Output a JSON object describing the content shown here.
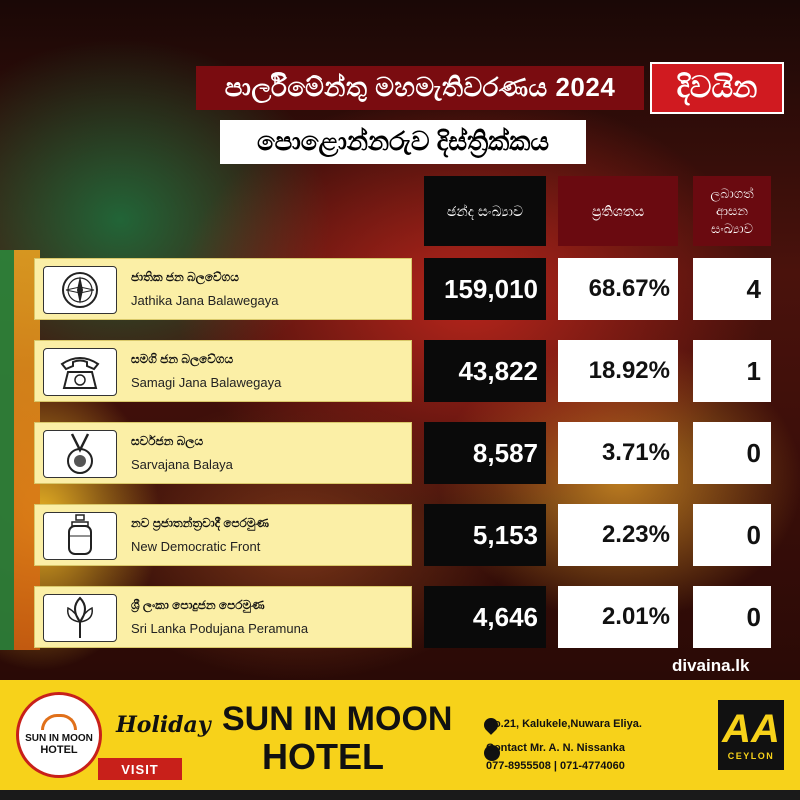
{
  "header": {
    "title": "පාර්ලිමේන්තු මහමැතිවරණය 2024",
    "brand": "දිවයින",
    "district": "පොළොන්නරුව දිස්ත්‍රික්කය"
  },
  "columns": {
    "votes": "ඡන්ද සංඛ්‍යාව",
    "percent": "ප්‍රතිශතය",
    "seats": "ලබාගත් ආසන සංඛ්‍යාව"
  },
  "results": [
    {
      "name_si": "ජාතික ජන බලවේගය",
      "name_en": "Jathika Jana Balawegaya",
      "votes": "159,010",
      "percent": "68.67%",
      "seats": "4",
      "icon": "compass-icon"
    },
    {
      "name_si": "සමගි ජන බලවේගය",
      "name_en": "Samagi Jana Balawegaya",
      "votes": "43,822",
      "percent": "18.92%",
      "seats": "1",
      "icon": "telephone-icon"
    },
    {
      "name_si": "සර්වජන බලය",
      "name_en": "Sarvajana Balaya",
      "votes": "8,587",
      "percent": "3.71%",
      "seats": "0",
      "icon": "medal-icon"
    },
    {
      "name_si": "නව ප්‍රජාතන්ත්‍රවාදී පෙරමුණ",
      "name_en": "New Democratic Front",
      "votes": "5,153",
      "percent": "2.23%",
      "seats": "0",
      "icon": "gas-cylinder-icon"
    },
    {
      "name_si": "ශ්‍රී ලංකා පොදුජන පෙරමුණ",
      "name_en": "Sri Lanka Podujana Peramuna",
      "votes": "4,646",
      "percent": "2.01%",
      "seats": "0",
      "icon": "flower-bud-icon"
    }
  ],
  "site": "divaina.lk",
  "ad": {
    "logo_line1": "SUN IN MOON",
    "logo_line2": "HOTEL",
    "holiday": "Holiday",
    "visit": "VISIT",
    "name_line1": "SUN IN MOON",
    "name_line2": "HOTEL",
    "address": "No.21, Kalukele,Nuwara Eliya.",
    "contact": "Contact Mr. A. N. Nissanka",
    "phones": "077-8955508 | 071-4774060",
    "aa_mark": "AA",
    "aa_text": "CEYLON"
  }
}
